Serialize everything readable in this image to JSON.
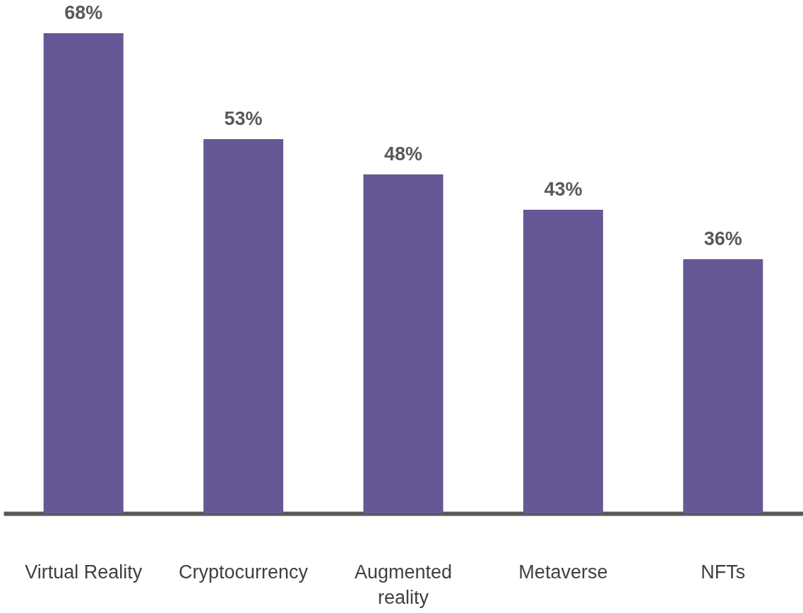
{
  "chart_data": {
    "type": "bar",
    "categories": [
      "Virtual Reality",
      "Cryptocurrency",
      "Augmented reality",
      "Metaverse",
      "NFTs"
    ],
    "values": [
      68,
      53,
      48,
      43,
      36
    ],
    "value_labels": [
      "68%",
      "53%",
      "48%",
      "43%",
      "36%"
    ],
    "color": "#675794"
  }
}
